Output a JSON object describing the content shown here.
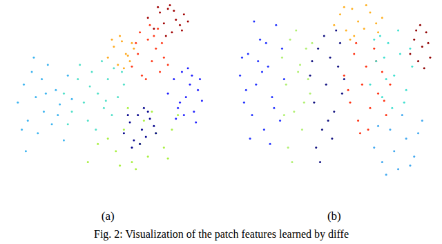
{
  "caption": "Fig. 2: Visualization of the patch features learned by diffe",
  "chart_data": [
    {
      "type": "scatter",
      "xlabel": "(a)",
      "xlim": [
        0,
        100
      ],
      "ylim": [
        0,
        100
      ],
      "tick_labels": false,
      "grid": false,
      "marker": "circle",
      "series": [
        {
          "color": "#3cb4f0",
          "x": [
            5,
            8,
            10,
            12,
            14,
            15,
            17,
            18,
            20,
            22,
            24,
            26,
            28,
            30,
            9,
            13,
            19,
            25,
            32,
            7
          ],
          "y": [
            45,
            55,
            35,
            62,
            48,
            28,
            58,
            40,
            66,
            33,
            52,
            44,
            24,
            60,
            18,
            70,
            50,
            38,
            47,
            30
          ]
        },
        {
          "color": "#50e0c8",
          "x": [
            28,
            32,
            35,
            38,
            40,
            42,
            45,
            48,
            50,
            52,
            55,
            58,
            36,
            44,
            47,
            53,
            30,
            41,
            49,
            57
          ],
          "y": [
            50,
            40,
            58,
            45,
            35,
            62,
            50,
            42,
            58,
            38,
            48,
            55,
            66,
            30,
            68,
            64,
            33,
            54,
            46,
            62
          ]
        },
        {
          "color": "#ffaa20",
          "x": [
            50,
            53,
            55,
            57,
            59,
            61,
            63,
            52,
            58,
            62,
            56,
            60
          ],
          "y": [
            70,
            76,
            66,
            79,
            72,
            68,
            75,
            80,
            64,
            78,
            82,
            71
          ]
        },
        {
          "color": "#ff3818",
          "x": [
            62,
            65,
            67,
            70,
            72,
            74,
            76,
            78,
            66,
            69,
            73,
            77,
            80,
            71,
            64,
            75
          ],
          "y": [
            65,
            72,
            60,
            80,
            68,
            75,
            62,
            70,
            84,
            58,
            82,
            78,
            66,
            88,
            78,
            86
          ]
        },
        {
          "color": "#a00000",
          "x": [
            70,
            73,
            76,
            78,
            80,
            82,
            84,
            86,
            88,
            75,
            79,
            83,
            87,
            90,
            81
          ],
          "y": [
            92,
            86,
            95,
            89,
            97,
            84,
            91,
            88,
            94,
            98,
            82,
            96,
            85,
            90,
            99
          ]
        },
        {
          "color": "#2020ff",
          "x": [
            80,
            83,
            85,
            87,
            89,
            91,
            93,
            95,
            97,
            84,
            88,
            92,
            96,
            86,
            90,
            94
          ],
          "y": [
            50,
            58,
            42,
            62,
            48,
            55,
            40,
            52,
            46,
            36,
            38,
            60,
            58,
            45,
            64,
            34
          ]
        },
        {
          "color": "#a8f040",
          "x": [
            50,
            54,
            58,
            62,
            66,
            70,
            74,
            78,
            82,
            85,
            56,
            64,
            72,
            80,
            60,
            68,
            45,
            40
          ],
          "y": [
            25,
            18,
            30,
            12,
            22,
            15,
            28,
            20,
            30,
            38,
            10,
            8,
            40,
            14,
            42,
            35,
            22,
            12
          ]
        },
        {
          "color": "#00008c",
          "x": [
            58,
            61,
            63,
            65,
            67,
            69,
            71,
            73,
            62,
            66,
            70,
            74,
            60,
            68
          ],
          "y": [
            28,
            34,
            24,
            38,
            30,
            26,
            36,
            32,
            20,
            22,
            40,
            28,
            38,
            42
          ]
        }
      ]
    },
    {
      "type": "scatter",
      "xlabel": "(b)",
      "xlim": [
        0,
        100
      ],
      "ylim": [
        0,
        100
      ],
      "tick_labels": false,
      "grid": false,
      "marker": "circle",
      "series": [
        {
          "color": "#2030ff",
          "x": [
            3,
            5,
            7,
            9,
            11,
            13,
            15,
            17,
            19,
            21,
            23,
            25,
            8,
            12,
            16,
            20,
            6,
            24,
            10,
            18,
            14,
            4
          ],
          "y": [
            60,
            45,
            72,
            38,
            55,
            80,
            30,
            65,
            48,
            88,
            35,
            58,
            25,
            68,
            78,
            42,
            52,
            75,
            90,
            22,
            62,
            70
          ]
        },
        {
          "color": "#b0f070",
          "x": [
            24,
            26,
            28,
            30,
            32,
            34,
            36,
            38,
            27,
            31,
            35,
            29,
            33,
            37,
            25,
            39
          ],
          "y": [
            70,
            55,
            80,
            40,
            62,
            30,
            75,
            50,
            20,
            85,
            45,
            12,
            66,
            58,
            38,
            78
          ]
        },
        {
          "color": "#101080",
          "x": [
            38,
            40,
            42,
            44,
            46,
            48,
            50,
            52,
            54,
            41,
            45,
            49,
            53,
            43,
            47,
            51,
            39,
            55
          ],
          "y": [
            60,
            45,
            75,
            30,
            55,
            70,
            40,
            65,
            50,
            20,
            82,
            25,
            78,
            12,
            35,
            85,
            68,
            58
          ]
        },
        {
          "color": "#ffb020",
          "x": [
            50,
            53,
            56,
            59,
            62,
            65,
            68,
            71,
            74,
            55,
            60,
            66,
            72,
            58
          ],
          "y": [
            88,
            94,
            85,
            97,
            90,
            86,
            95,
            89,
            92,
            98,
            82,
            99,
            84,
            80
          ]
        },
        {
          "color": "#ff3010",
          "x": [
            55,
            58,
            60,
            62,
            64,
            66,
            68,
            70,
            72,
            74,
            76,
            78,
            63,
            67,
            71,
            57,
            75,
            61
          ],
          "y": [
            60,
            45,
            72,
            35,
            55,
            65,
            42,
            75,
            50,
            62,
            38,
            55,
            28,
            30,
            68,
            52,
            46,
            78
          ]
        },
        {
          "color": "#40e0d0",
          "x": [
            68,
            71,
            74,
            77,
            80,
            83,
            86,
            89,
            73,
            79,
            85,
            70,
            82,
            76,
            88,
            75
          ],
          "y": [
            55,
            68,
            48,
            78,
            60,
            72,
            52,
            65,
            82,
            42,
            45,
            80,
            85,
            58,
            75,
            70
          ]
        },
        {
          "color": "#900000",
          "x": [
            88,
            90,
            92,
            94,
            96,
            98,
            91,
            95,
            97,
            93
          ],
          "y": [
            72,
            80,
            68,
            76,
            84,
            70,
            85,
            64,
            78,
            88
          ]
        },
        {
          "color": "#40a8f0",
          "x": [
            70,
            74,
            78,
            82,
            86,
            90,
            94,
            76,
            84,
            92,
            80,
            88,
            72
          ],
          "y": [
            20,
            12,
            30,
            8,
            25,
            15,
            35,
            5,
            38,
            28,
            18,
            10,
            32
          ]
        }
      ]
    }
  ]
}
